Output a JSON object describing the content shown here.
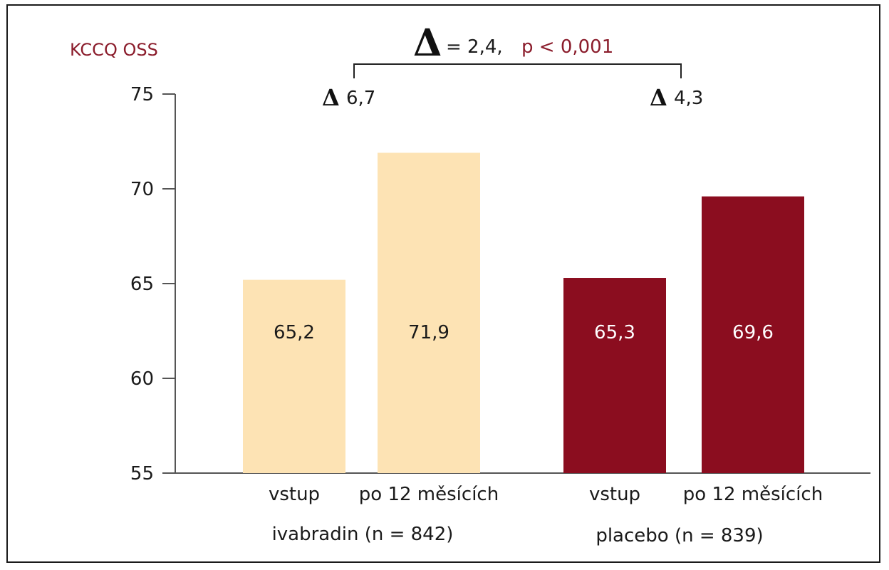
{
  "chart_data": {
    "type": "bar",
    "ylabel": "KCCQ OSS",
    "ylim": [
      55,
      75
    ],
    "yticks": [
      55,
      60,
      65,
      70,
      75
    ],
    "categories": [
      "vstup",
      "po 12 měsících",
      "vstup",
      "po 12 měsících"
    ],
    "groups": [
      {
        "name": "ivabradin (n = 842)",
        "values": [
          65.2,
          71.9
        ],
        "value_labels": [
          "65,2",
          "71,9"
        ],
        "color": "#fde3b4",
        "label_color": "#1a1a1a"
      },
      {
        "name": "placebo (n = 839)",
        "values": [
          65.3,
          69.6
        ],
        "value_labels": [
          "65,3",
          "69,6"
        ],
        "color": "#8b0d1f",
        "label_color": "#ffffff"
      }
    ],
    "annotations": {
      "group_deltas": [
        "6,7",
        "4,3"
      ],
      "delta_symbol": "Δ",
      "between_delta": "= 2,4,",
      "p_value": "p < 0,001"
    }
  }
}
